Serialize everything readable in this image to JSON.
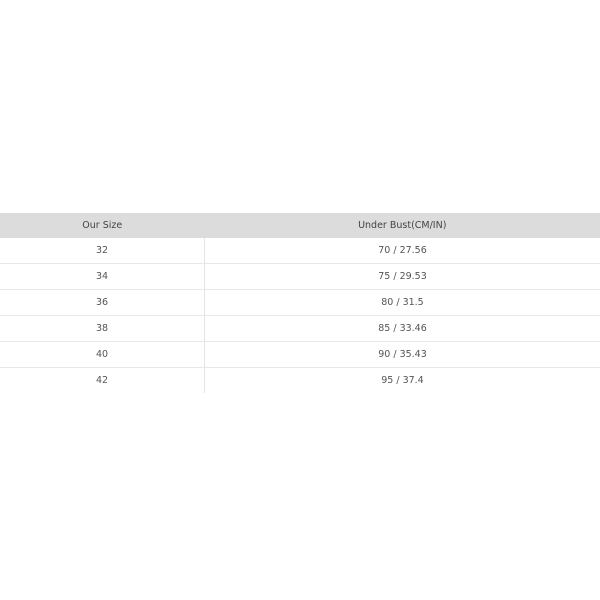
{
  "table": {
    "headers": [
      "Our Size",
      "Under Bust(CM/IN)"
    ],
    "rows": [
      [
        "32",
        "70 / 27.56"
      ],
      [
        "34",
        "75 / 29.53"
      ],
      [
        "36",
        "80 / 31.5"
      ],
      [
        "38",
        "85 / 33.46"
      ],
      [
        "40",
        "90 / 35.43"
      ],
      [
        "42",
        "95 / 37.4"
      ]
    ]
  }
}
